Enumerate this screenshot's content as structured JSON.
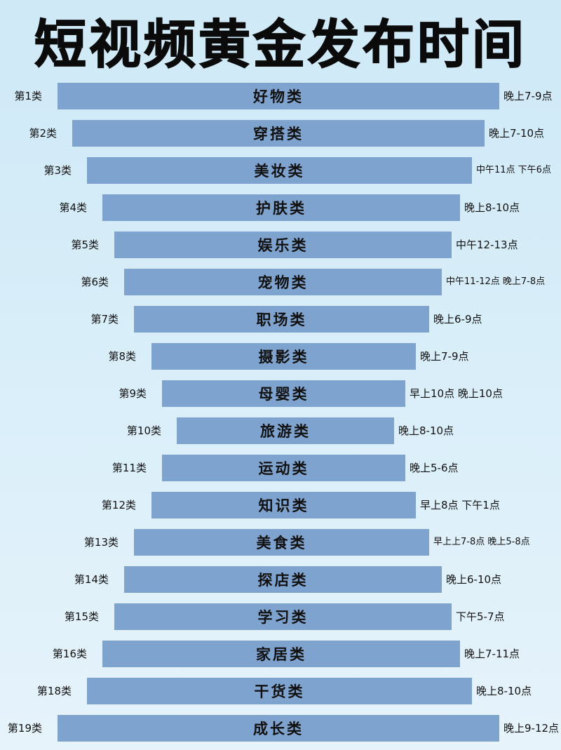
{
  "title": "短视频黄金发布时间",
  "colors": {
    "bar": "#7fa3cf",
    "background_top": "#cfe9f7",
    "background_bottom": "#e6f3fb",
    "text": "#111111"
  },
  "rows": [
    {
      "rank": "第1类",
      "category": "好物类",
      "time": "晚上7-9点"
    },
    {
      "rank": "第2类",
      "category": "穿搭类",
      "time": "晚上7-10点"
    },
    {
      "rank": "第3类",
      "category": "美妆类",
      "time": "中午11点 下午6点"
    },
    {
      "rank": "第4类",
      "category": "护肤类",
      "time": "晚上8-10点"
    },
    {
      "rank": "第5类",
      "category": "娱乐类",
      "time": "中午12-13点"
    },
    {
      "rank": "第6类",
      "category": "宠物类",
      "time": "中午11-12点 晚上7-8点"
    },
    {
      "rank": "第7类",
      "category": "职场类",
      "time": "晚上6-9点"
    },
    {
      "rank": "第8类",
      "category": "摄影类",
      "time": "晚上7-9点"
    },
    {
      "rank": "第9类",
      "category": "母婴类",
      "time": "早上10点  晚上10点"
    },
    {
      "rank": "第10类",
      "category": "旅游类",
      "time": "晚上8-10点"
    },
    {
      "rank": "第11类",
      "category": "运动类",
      "time": "晚上5-6点"
    },
    {
      "rank": "第12类",
      "category": "知识类",
      "time": "早上8点  下午1点"
    },
    {
      "rank": "第13类",
      "category": "美食类",
      "time": "早上上7-8点 晚上5-8点"
    },
    {
      "rank": "第14类",
      "category": "探店类",
      "time": "晚上6-10点"
    },
    {
      "rank": "第15类",
      "category": "学习类",
      "time": "下午5-7点"
    },
    {
      "rank": "第16类",
      "category": "家居类",
      "time": "晚上7-11点"
    },
    {
      "rank": "第18类",
      "category": "干货类",
      "time": "晚上8-10点"
    },
    {
      "rank": "第19类",
      "category": "成长类",
      "time": "晚上9-12点"
    }
  ]
}
